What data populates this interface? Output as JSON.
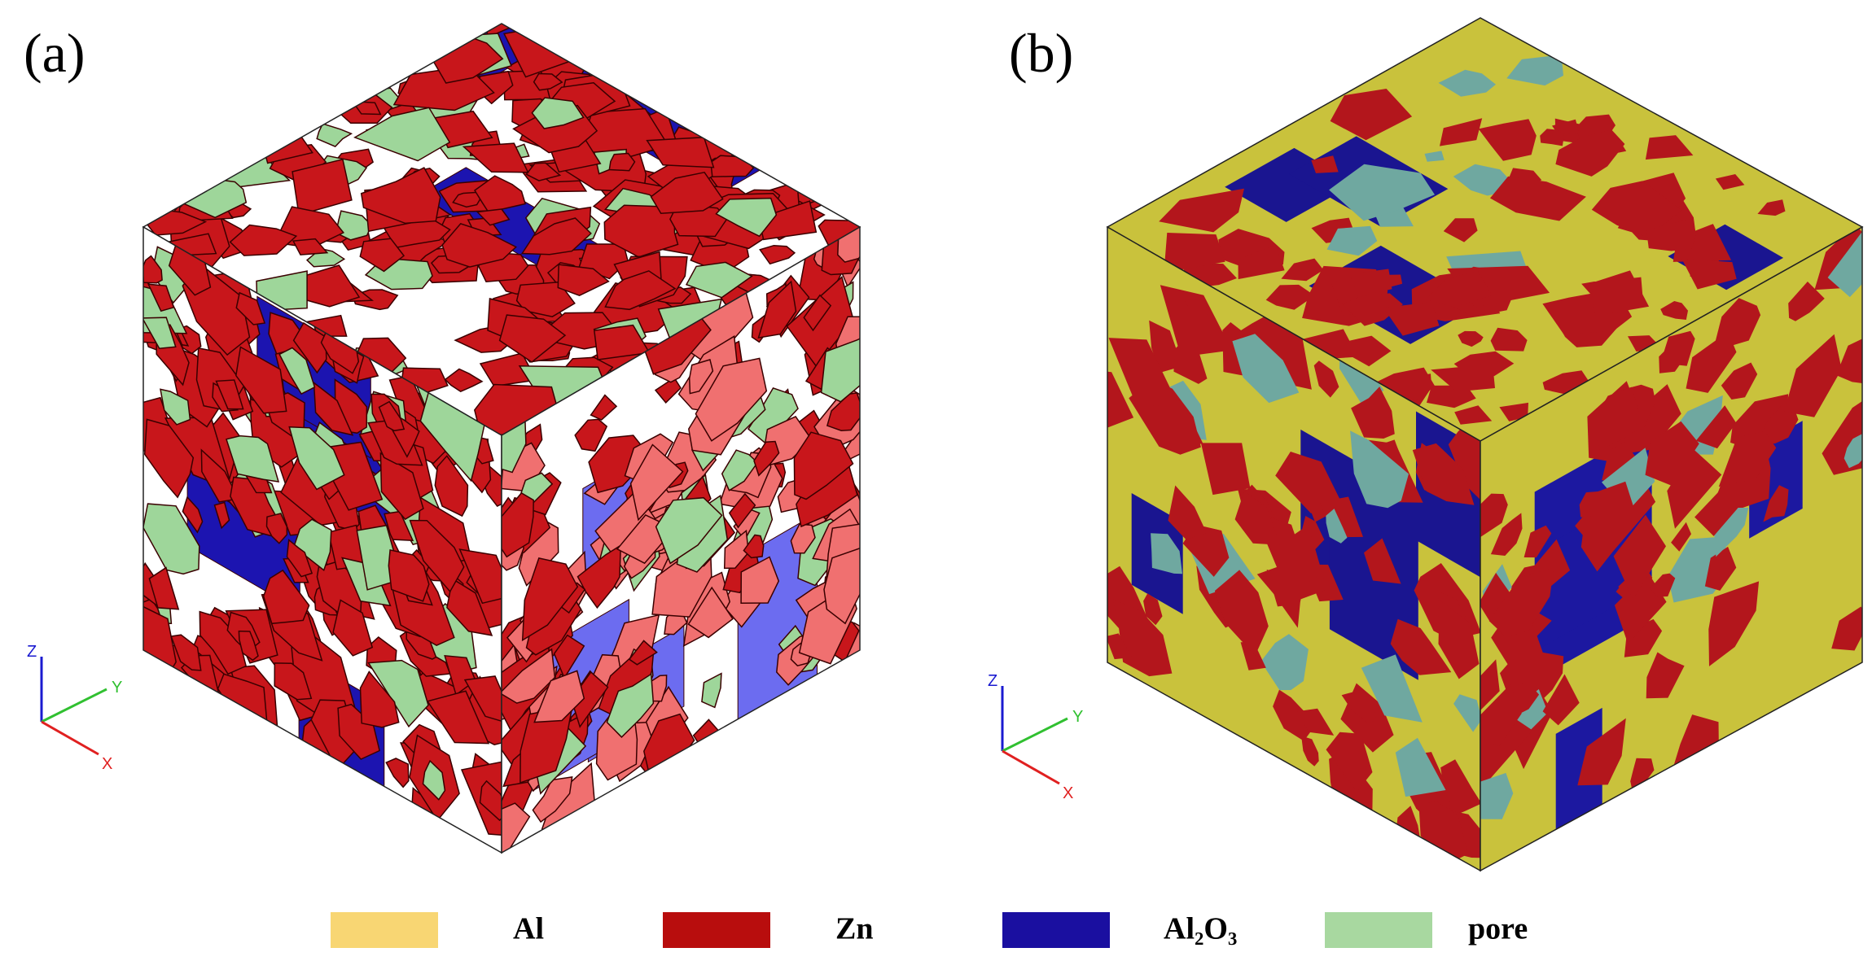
{
  "panels": [
    {
      "label": "(a)",
      "axes": {
        "z": "Z",
        "y": "Y",
        "x": "X"
      }
    },
    {
      "label": "(b)",
      "axes": {
        "z": "Z",
        "y": "Y",
        "x": "X"
      }
    }
  ],
  "legend": [
    {
      "label": "Al",
      "color": "#f8d673"
    },
    {
      "label": "Zn",
      "color": "#b80d0d"
    },
    {
      "label": "Al₂O₃",
      "color": "#1a0fa0"
    },
    {
      "label": "pore",
      "color": "#a8d8a0"
    }
  ]
}
